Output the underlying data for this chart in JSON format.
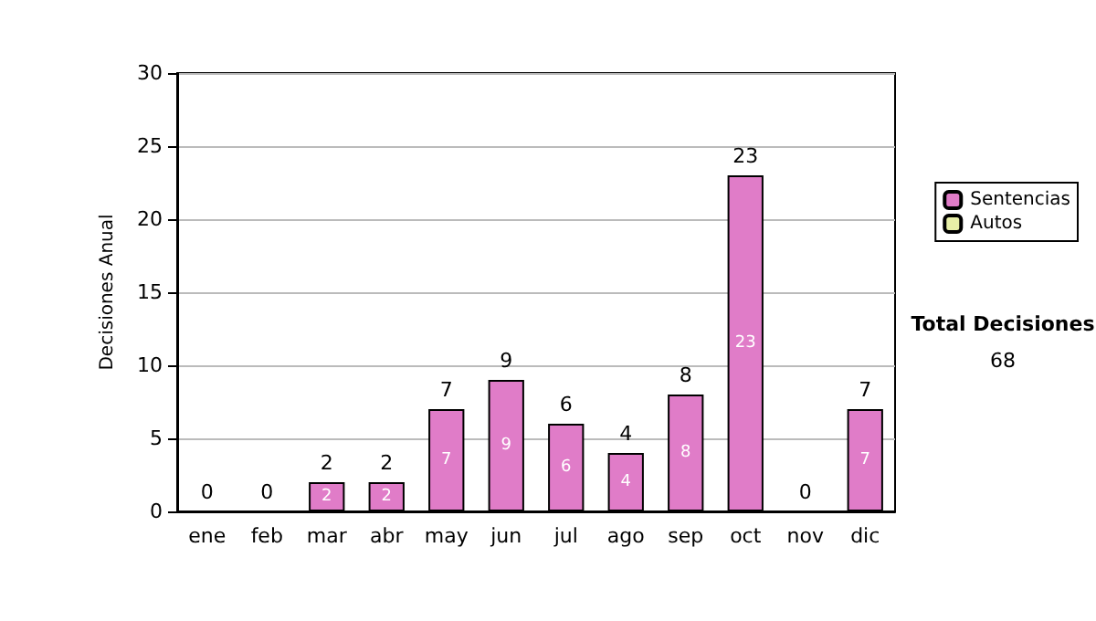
{
  "chart_data": {
    "type": "bar",
    "ylabel": "Decisiones Anual",
    "categories": [
      "ene",
      "feb",
      "mar",
      "abr",
      "may",
      "jun",
      "jul",
      "ago",
      "sep",
      "oct",
      "nov",
      "dic"
    ],
    "series": [
      {
        "name": "Sentencias",
        "color": "#e07cc8",
        "values": [
          0,
          0,
          2,
          2,
          7,
          9,
          6,
          4,
          8,
          23,
          0,
          7
        ],
        "value_labels": [
          null,
          null,
          "2",
          "2",
          "7",
          "9",
          "6",
          "4",
          "8",
          "23",
          null,
          "7"
        ]
      },
      {
        "name": "Autos",
        "color": "#e8f0a8",
        "values": [
          0,
          0,
          0,
          0,
          0,
          0,
          0,
          0,
          0,
          0,
          0,
          0
        ]
      }
    ],
    "stacked": true,
    "totals": [
      "0",
      "0",
      "2",
      "2",
      "7",
      "9",
      "6",
      "4",
      "8",
      "23",
      "0",
      "7"
    ],
    "ylim": [
      0,
      30
    ],
    "yticks": [
      0,
      5,
      10,
      15,
      20,
      25,
      30
    ],
    "grid": "y",
    "legend": "right",
    "annotations": [
      "Total Decisiones",
      "68"
    ]
  }
}
